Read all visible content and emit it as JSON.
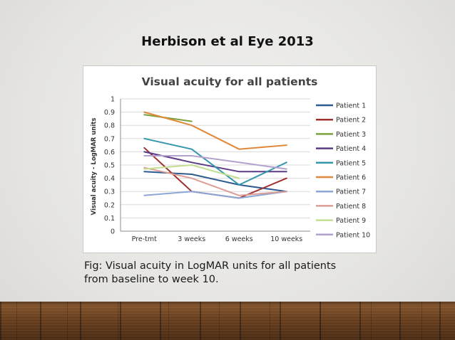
{
  "slide": {
    "title": "Herbison et al Eye 2013",
    "caption_lines": [
      "Fig: Visual acuity in LogMAR units for all patients",
      "from baseline to week 10."
    ]
  },
  "chart_data": {
    "type": "line",
    "title": "Visual acuity for all patients",
    "ylabel": "Visual acuity - LogMAR units",
    "xlabel": "",
    "categories": [
      "Pre-tmt",
      "3 weeks",
      "6 weeks",
      "10 weeks"
    ],
    "ylim": [
      0,
      1
    ],
    "yticks": [
      0,
      0.1,
      0.2,
      0.3,
      0.4,
      0.5,
      0.6,
      0.7,
      0.8,
      0.9,
      1
    ],
    "ytick_labels": [
      "0",
      "0.1",
      "0.2",
      "0.3",
      "0.4",
      "0.5",
      "0.6",
      "0.7",
      "0.8",
      "0.9",
      "1"
    ],
    "grid": true,
    "legend_position": "right",
    "series": [
      {
        "name": "Patient 1",
        "color": "#2e5b8f",
        "values": [
          0.45,
          0.43,
          0.35,
          0.3
        ]
      },
      {
        "name": "Patient 2",
        "color": "#a0302d",
        "values": [
          0.63,
          0.3,
          0.25,
          0.4
        ]
      },
      {
        "name": "Patient 3",
        "color": "#7aa03c",
        "values": [
          0.88,
          0.83,
          null,
          null
        ]
      },
      {
        "name": "Patient 4",
        "color": "#5b3a86",
        "values": [
          0.6,
          0.52,
          0.45,
          0.45
        ]
      },
      {
        "name": "Patient 5",
        "color": "#3596ad",
        "values": [
          0.7,
          0.62,
          0.35,
          0.52
        ]
      },
      {
        "name": "Patient 6",
        "color": "#e0883a",
        "values": [
          0.9,
          0.8,
          0.62,
          0.65
        ]
      },
      {
        "name": "Patient 7",
        "color": "#8aa7d6",
        "values": [
          0.27,
          0.3,
          0.25,
          0.3
        ]
      },
      {
        "name": "Patient 8",
        "color": "#dc9d95",
        "values": [
          0.48,
          0.4,
          0.27,
          0.3
        ]
      },
      {
        "name": "Patient 9",
        "color": "#c2de92",
        "values": [
          0.47,
          0.5,
          0.4,
          null
        ]
      },
      {
        "name": "Patient 10",
        "color": "#b3a2cf",
        "values": [
          0.57,
          0.57,
          0.52,
          0.47
        ]
      }
    ]
  }
}
